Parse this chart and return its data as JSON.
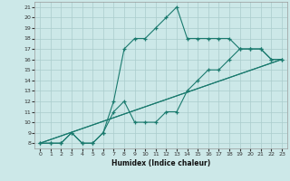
{
  "xlabel": "Humidex (Indice chaleur)",
  "xlim": [
    -0.5,
    23.5
  ],
  "ylim": [
    7.5,
    21.5
  ],
  "xticks": [
    0,
    1,
    2,
    3,
    4,
    5,
    6,
    7,
    8,
    9,
    10,
    11,
    12,
    13,
    14,
    15,
    16,
    17,
    18,
    19,
    20,
    21,
    22,
    23
  ],
  "yticks": [
    8,
    9,
    10,
    11,
    12,
    13,
    14,
    15,
    16,
    17,
    18,
    19,
    20,
    21
  ],
  "color": "#1a7a6e",
  "bg_color": "#cce8e8",
  "grid_color": "#aacccc",
  "lines": [
    {
      "x": [
        0,
        1,
        2,
        3,
        4,
        5,
        6,
        7,
        8,
        9,
        10,
        11,
        12,
        13,
        14,
        15,
        16,
        17,
        18,
        19,
        20,
        21,
        22,
        23
      ],
      "y": [
        8,
        8,
        8,
        9,
        8,
        8,
        9,
        12,
        17,
        18,
        18,
        19,
        20,
        21,
        18,
        18,
        18,
        18,
        18,
        17,
        17,
        17,
        16,
        16
      ],
      "marker": true,
      "linestyle": "-"
    },
    {
      "x": [
        0,
        1,
        2,
        3,
        4,
        5,
        6,
        7,
        8,
        9,
        10,
        11,
        12,
        13,
        14,
        15,
        16,
        17,
        18,
        19,
        20,
        21,
        22,
        23
      ],
      "y": [
        8,
        8,
        8,
        9,
        8,
        8,
        9,
        11,
        12,
        10,
        10,
        10,
        11,
        11,
        13,
        14,
        15,
        15,
        16,
        17,
        17,
        17,
        16,
        16
      ],
      "marker": true,
      "linestyle": "-"
    },
    {
      "x": [
        0,
        23
      ],
      "y": [
        8,
        16
      ],
      "marker": false,
      "linestyle": "-"
    },
    {
      "x": [
        0,
        23
      ],
      "y": [
        8,
        16
      ],
      "marker": false,
      "linestyle": "-"
    }
  ]
}
